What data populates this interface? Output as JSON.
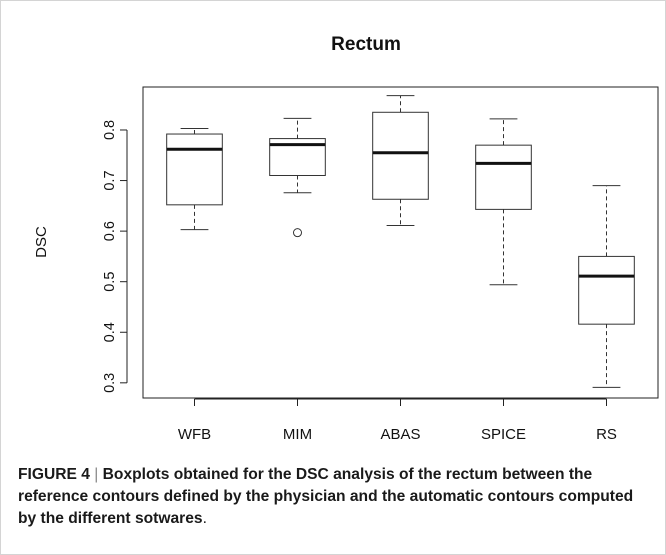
{
  "chart_data": {
    "type": "box",
    "title": "Rectum",
    "xlabel": "",
    "ylabel": "DSC",
    "ylim": [
      0.27,
      0.885
    ],
    "yticks": [
      0.3,
      0.4,
      0.5,
      0.6,
      0.7,
      0.8
    ],
    "ytick_labels": [
      "0.3",
      "0.4",
      "0.5",
      "0.6",
      "0.7",
      "0.8"
    ],
    "grid": false,
    "legend": "none",
    "categories": [
      "WFB",
      "MIM",
      "ABAS",
      "SPICE",
      "RS"
    ],
    "boxes": [
      {
        "label": "WFB",
        "whisker_low": 0.603,
        "q1": 0.652,
        "median": 0.762,
        "q3": 0.792,
        "whisker_high": 0.803,
        "outliers": []
      },
      {
        "label": "MIM",
        "whisker_low": 0.676,
        "q1": 0.71,
        "median": 0.771,
        "q3": 0.783,
        "whisker_high": 0.823,
        "outliers": [
          0.597
        ]
      },
      {
        "label": "ABAS",
        "whisker_low": 0.611,
        "q1": 0.663,
        "median": 0.755,
        "q3": 0.835,
        "whisker_high": 0.868,
        "outliers": []
      },
      {
        "label": "SPICE",
        "whisker_low": 0.494,
        "q1": 0.643,
        "median": 0.734,
        "q3": 0.77,
        "whisker_high": 0.822,
        "outliers": []
      },
      {
        "label": "RS",
        "whisker_low": 0.291,
        "q1": 0.416,
        "median": 0.511,
        "q3": 0.55,
        "whisker_high": 0.69,
        "outliers": []
      }
    ]
  },
  "caption": {
    "label": "FIGURE 4",
    "separator": "|",
    "text": "Boxplots obtained for the DSC analysis of the rectum between the reference contours defined by the physician and the automatic contours computed by the different sotwares",
    "end": "."
  }
}
